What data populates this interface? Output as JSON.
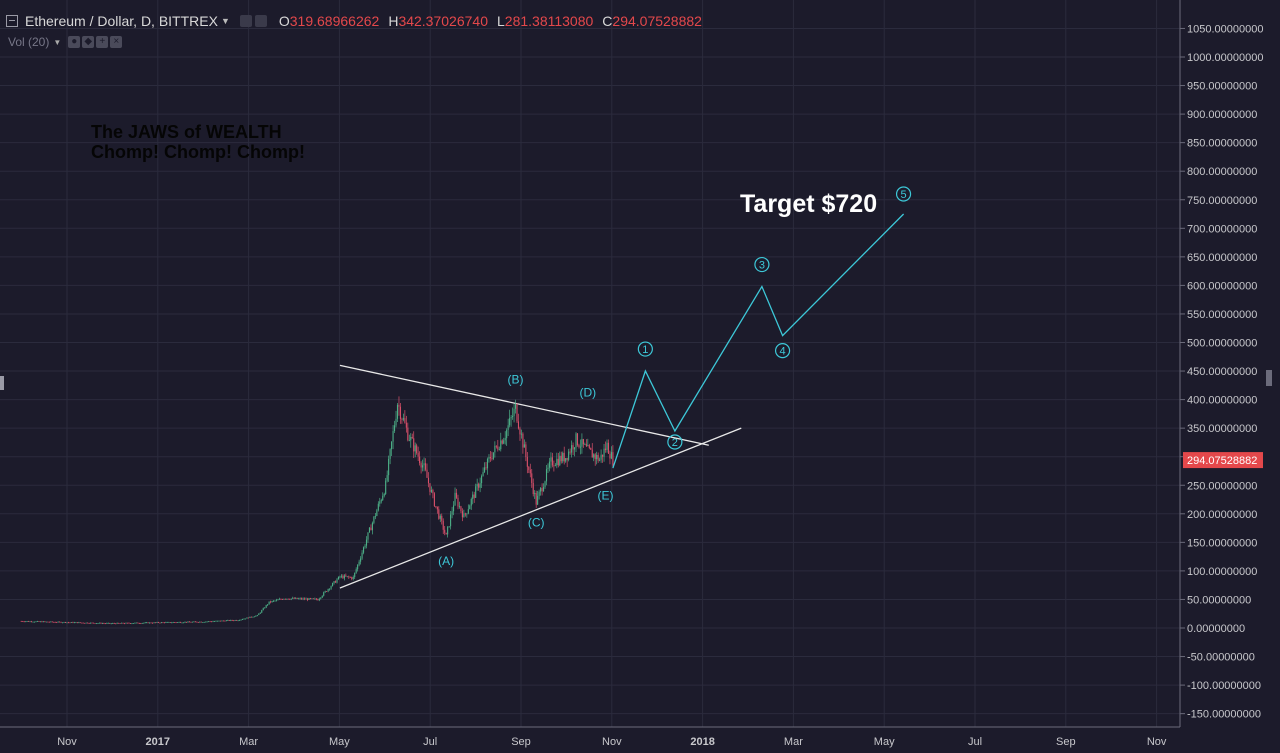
{
  "header": {
    "symbol": "Ethereum / Dollar, D, BITTREX",
    "open_label": "O",
    "open": "319.68966262",
    "high_label": "H",
    "high": "342.37026740",
    "low_label": "L",
    "low": "281.38113080",
    "close_label": "C",
    "close": "294.07528882"
  },
  "volume": {
    "label": "Vol (20)"
  },
  "annotations": {
    "note_line1": "The JAWS of WEALTH",
    "note_line2": "Chomp! Chomp! Chomp!",
    "target": "Target $720"
  },
  "colors": {
    "background": "#1c1b2b",
    "grid": "#2b2b3d",
    "up": "#4caf87",
    "down": "#d9506a",
    "wave": "#3dc8d8",
    "trendline": "#e8e8e8",
    "price_tag": "#e4484b"
  },
  "chart_data": {
    "type": "candlestick",
    "x_ticks": [
      "Nov",
      "2017",
      "Mar",
      "May",
      "Jul",
      "Sep",
      "Nov",
      "2018",
      "Mar",
      "May",
      "Jul",
      "Sep",
      "Nov"
    ],
    "y_ticks": [
      "1050.00000000",
      "1000.00000000",
      "950.00000000",
      "900.00000000",
      "850.00000000",
      "800.00000000",
      "750.00000000",
      "700.00000000",
      "650.00000000",
      "600.00000000",
      "550.00000000",
      "500.00000000",
      "450.00000000",
      "400.00000000",
      "350.00000000",
      "300.00000000",
      "250.00000000",
      "200.00000000",
      "150.00000000",
      "100.00000000",
      "50.00000000",
      "0.00000000",
      "-50.00000000",
      "-100.00000000",
      "-150.00000000"
    ],
    "ylim": [
      -170,
      1090
    ],
    "last_price": "294.07528882",
    "price_path": [
      [
        "2016-10-01",
        12
      ],
      [
        "2016-12-01",
        8
      ],
      [
        "2017-02-01",
        11
      ],
      [
        "2017-02-25",
        14
      ],
      [
        "2017-03-10",
        22
      ],
      [
        "2017-03-18",
        45
      ],
      [
        "2017-03-28",
        52
      ],
      [
        "2017-04-20",
        50
      ],
      [
        "2017-05-05",
        90
      ],
      [
        "2017-05-14",
        88
      ],
      [
        "2017-05-25",
        170
      ],
      [
        "2017-06-05",
        250
      ],
      [
        "2017-06-13",
        395
      ],
      [
        "2017-06-20",
        340
      ],
      [
        "2017-07-01",
        280
      ],
      [
        "2017-07-08",
        220
      ],
      [
        "2017-07-16",
        160
      ],
      [
        "2017-07-22",
        230
      ],
      [
        "2017-07-28",
        195
      ],
      [
        "2017-08-05",
        240
      ],
      [
        "2017-08-15",
        300
      ],
      [
        "2017-08-25",
        340
      ],
      [
        "2017-09-01",
        385
      ],
      [
        "2017-09-08",
        300
      ],
      [
        "2017-09-15",
        220
      ],
      [
        "2017-09-25",
        290
      ],
      [
        "2017-10-05",
        300
      ],
      [
        "2017-10-12",
        330
      ],
      [
        "2017-10-20",
        310
      ],
      [
        "2017-10-28",
        295
      ],
      [
        "2017-11-02",
        320
      ],
      [
        "2017-11-06",
        294
      ]
    ],
    "trendlines": [
      {
        "from": [
          "2017-05-05",
          460
        ],
        "to": [
          "2018-01-10",
          320
        ]
      },
      {
        "from": [
          "2017-05-05",
          70
        ],
        "to": [
          "2018-02-01",
          350
        ]
      }
    ],
    "triangle_labels": [
      {
        "label": "(A)",
        "x": "2017-07-16",
        "y": 110
      },
      {
        "label": "(B)",
        "x": "2017-09-01",
        "y": 428
      },
      {
        "label": "(C)",
        "x": "2017-09-15",
        "y": 178
      },
      {
        "label": "(D)",
        "x": "2017-10-20",
        "y": 405
      },
      {
        "label": "(E)",
        "x": "2017-11-01",
        "y": 225
      }
    ],
    "wave_projection": [
      {
        "label": "",
        "x": "2017-11-06",
        "y": 280
      },
      {
        "label": "1",
        "x": "2017-11-28",
        "y": 450
      },
      {
        "label": "2",
        "x": "2017-12-18",
        "y": 345
      },
      {
        "label": "3",
        "x": "2018-02-15",
        "y": 598
      },
      {
        "label": "4",
        "x": "2018-03-01",
        "y": 512
      },
      {
        "label": "5",
        "x": "2018-05-22",
        "y": 725
      }
    ]
  }
}
